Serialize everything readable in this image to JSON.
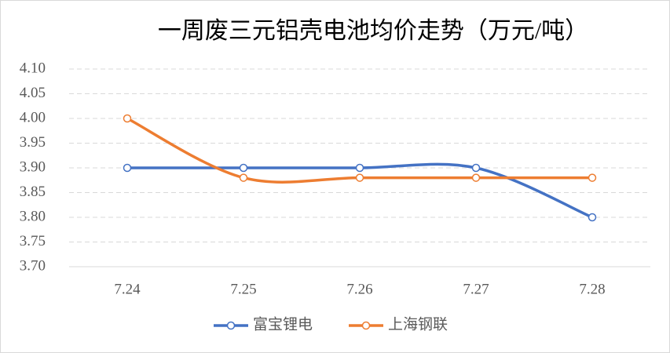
{
  "chart_data": {
    "type": "line",
    "title": "一周废三元铝壳电池均价走势（万元/吨）",
    "categories": [
      "7.24",
      "7.25",
      "7.26",
      "7.27",
      "7.28"
    ],
    "series": [
      {
        "name": "富宝锂电",
        "color": "#4472c4",
        "values": [
          3.9,
          3.9,
          3.9,
          3.9,
          3.8
        ]
      },
      {
        "name": "上海钢联",
        "color": "#ed7d31",
        "values": [
          4.0,
          3.88,
          3.88,
          3.88,
          3.88
        ]
      }
    ],
    "ylim": [
      3.7,
      4.1
    ],
    "yticks": [
      {
        "value": 3.7,
        "label": "3.70"
      },
      {
        "value": 3.75,
        "label": "3.75"
      },
      {
        "value": 3.8,
        "label": "3.80"
      },
      {
        "value": 3.85,
        "label": "3.85"
      },
      {
        "value": 3.9,
        "label": "3.90"
      },
      {
        "value": 3.95,
        "label": "3.95"
      },
      {
        "value": 4.0,
        "label": "4.00"
      },
      {
        "value": 4.05,
        "label": "4.05"
      },
      {
        "value": 4.1,
        "label": "4.10"
      }
    ],
    "grid": true,
    "smooth": true,
    "legend": "bottom"
  }
}
